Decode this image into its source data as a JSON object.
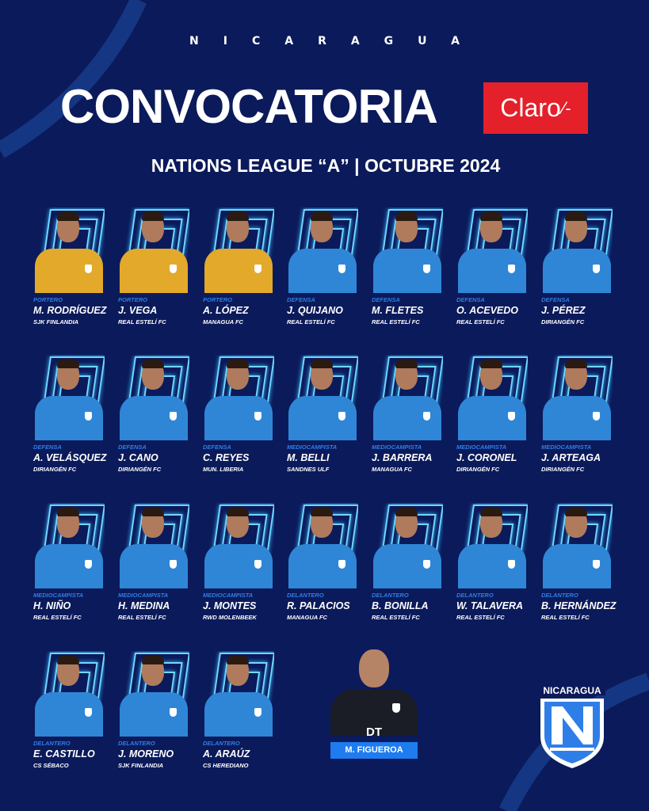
{
  "header": {
    "country": "NICARAGUA",
    "title": "CONVOCATORIA",
    "sponsor": "Claro",
    "subtitle": "NATIONS LEAGUE “A” | OCTUBRE 2024"
  },
  "colors": {
    "background": "#0b1a5a",
    "accent": "#2f7ee8",
    "sponsor": "#e4202b",
    "gk_kit": "#e2a92a",
    "outfield_kit": "#2f86d6"
  },
  "players": [
    {
      "position": "PORTERO",
      "name": "M. RODRÍGUEZ",
      "club": "SJK FINLANDIA"
    },
    {
      "position": "PORTERO",
      "name": "J. VEGA",
      "club": "REAL ESTELÍ FC"
    },
    {
      "position": "PORTERO",
      "name": "A. LÓPEZ",
      "club": "MANAGUA FC"
    },
    {
      "position": "DEFENSA",
      "name": "J. QUIJANO",
      "club": "REAL ESTELÍ FC"
    },
    {
      "position": "DEFENSA",
      "name": "M. FLETES",
      "club": "REAL ESTELÍ FC"
    },
    {
      "position": "DEFENSA",
      "name": "O. ACEVEDO",
      "club": "REAL ESTELÍ FC"
    },
    {
      "position": "DEFENSA",
      "name": "J. PÉREZ",
      "club": "DIRIANGÉN FC"
    },
    {
      "position": "DEFENSA",
      "name": "A. VELÁSQUEZ",
      "club": "DIRIANGÉN FC"
    },
    {
      "position": "DEFENSA",
      "name": "J. CANO",
      "club": "DIRIANGÉN FC"
    },
    {
      "position": "DEFENSA",
      "name": "C. REYES",
      "club": "MUN. LIBERIA"
    },
    {
      "position": "MEDIOCAMPISTA",
      "name": "M. BELLI",
      "club": "SANDNES ULF"
    },
    {
      "position": "MEDIOCAMPISTA",
      "name": "J. BARRERA",
      "club": "MANAGUA FC"
    },
    {
      "position": "MEDIOCAMPISTA",
      "name": "J. CORONEL",
      "club": "DIRIANGÉN FC"
    },
    {
      "position": "MEDIOCAMPISTA",
      "name": "J. ARTEAGA",
      "club": "DIRIANGÉN FC"
    },
    {
      "position": "MEDIOCAMPISTA",
      "name": "H. NIÑO",
      "club": "REAL ESTELÍ FC"
    },
    {
      "position": "MEDIOCAMPISTA",
      "name": "H. MEDINA",
      "club": "REAL ESTELÍ FC"
    },
    {
      "position": "MEDIOCAMPISTA",
      "name": "J. MONTES",
      "club": "RWD MOLENBEEK"
    },
    {
      "position": "DELANTERO",
      "name": "R. PALACIOS",
      "club": "MANAGUA FC"
    },
    {
      "position": "DELANTERO",
      "name": "B. BONILLA",
      "club": "REAL ESTELÍ FC"
    },
    {
      "position": "DELANTERO",
      "name": "W. TALAVERA",
      "club": "REAL ESTELÍ FC"
    },
    {
      "position": "DELANTERO",
      "name": "B. HERNÁNDEZ",
      "club": "REAL ESTELÍ FC"
    },
    {
      "position": "DELANTERO",
      "name": "E. CASTILLO",
      "club": "CS SÉBACO"
    },
    {
      "position": "DELANTERO",
      "name": "J. MORENO",
      "club": "SJK FINLANDIA"
    },
    {
      "position": "DELANTERO",
      "name": "A. ARAÚZ",
      "club": "CS HEREDIANO"
    }
  ],
  "coach": {
    "role": "DT",
    "name": "M. FIGUEROA"
  },
  "crest": {
    "text": "NICARAGUA",
    "letter": "N"
  }
}
